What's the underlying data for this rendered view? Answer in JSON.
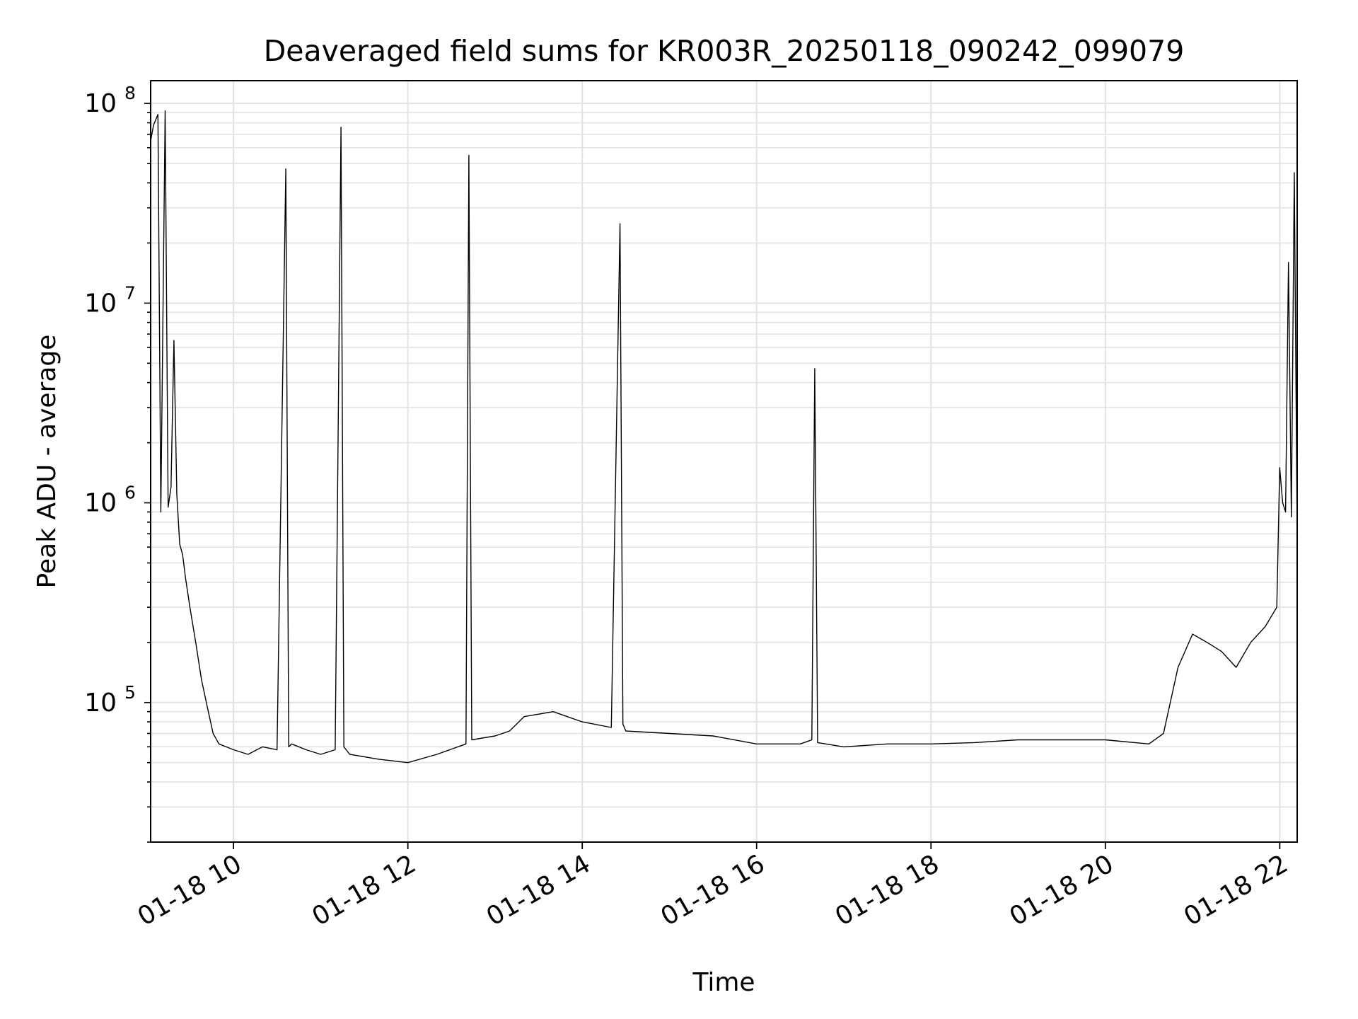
{
  "chart_data": {
    "type": "line",
    "title": "Deaveraged field sums for KR003R_20250118_090242_099079",
    "xlabel": "Time",
    "ylabel": "Peak ADU - average",
    "y_scale": "log",
    "ylim": [
      20000,
      130000000
    ],
    "xlim": [
      "01-18 09:03",
      "01-18 22:12"
    ],
    "grid": true,
    "line_color": "#000000",
    "x_tick_labels": [
      "01-18 10",
      "01-18 12",
      "01-18 14",
      "01-18 16",
      "01-18 18",
      "01-18 20",
      "01-18 22"
    ],
    "x_tick_times": [
      "01-18 10:00",
      "01-18 12:00",
      "01-18 14:00",
      "01-18 16:00",
      "01-18 18:00",
      "01-18 20:00",
      "01-18 22:00"
    ],
    "y_ticks": [
      {
        "value": 100000,
        "base": "10",
        "exp": "5"
      },
      {
        "value": 1000000,
        "base": "10",
        "exp": "6"
      },
      {
        "value": 10000000,
        "base": "10",
        "exp": "7"
      },
      {
        "value": 100000000,
        "base": "10",
        "exp": "8"
      }
    ],
    "series": [
      {
        "x": [
          "01-18 09:03",
          "01-18 09:05",
          "01-18 09:08",
          "01-18 09:10",
          "01-18 09:13",
          "01-18 09:15",
          "01-18 09:17",
          "01-18 09:19",
          "01-18 09:21",
          "01-18 09:23",
          "01-18 09:25",
          "01-18 09:27",
          "01-18 09:30",
          "01-18 09:34",
          "01-18 09:38",
          "01-18 09:42",
          "01-18 09:46",
          "01-18 09:50",
          "01-18 09:55",
          "01-18 10:00",
          "01-18 10:10",
          "01-18 10:20",
          "01-18 10:30",
          "01-18 10:36",
          "01-18 10:38",
          "01-18 10:40",
          "01-18 10:50",
          "01-18 11:00",
          "01-18 11:10",
          "01-18 11:14",
          "01-18 11:16",
          "01-18 11:20",
          "01-18 11:40",
          "01-18 12:00",
          "01-18 12:20",
          "01-18 12:40",
          "01-18 12:42",
          "01-18 12:44",
          "01-18 13:00",
          "01-18 13:10",
          "01-18 13:20",
          "01-18 13:40",
          "01-18 14:00",
          "01-18 14:20",
          "01-18 14:26",
          "01-18 14:28",
          "01-18 14:30",
          "01-18 15:00",
          "01-18 15:30",
          "01-18 16:00",
          "01-18 16:30",
          "01-18 16:38",
          "01-18 16:40",
          "01-18 16:42",
          "01-18 17:00",
          "01-18 17:30",
          "01-18 18:00",
          "01-18 18:30",
          "01-18 19:00",
          "01-18 19:30",
          "01-18 20:00",
          "01-18 20:30",
          "01-18 20:40",
          "01-18 20:50",
          "01-18 21:00",
          "01-18 21:10",
          "01-18 21:20",
          "01-18 21:30",
          "01-18 21:40",
          "01-18 21:50",
          "01-18 21:58",
          "01-18 22:00",
          "01-18 22:02",
          "01-18 22:04",
          "01-18 22:06",
          "01-18 22:08",
          "01-18 22:10",
          "01-18 22:12"
        ],
        "y": [
          65000000,
          78000000,
          88000000,
          900000,
          92000000,
          950000,
          1200000,
          6500000,
          1100000,
          620000,
          550000,
          420000,
          300000,
          200000,
          130000,
          95000,
          70000,
          62000,
          60000,
          58000,
          55000,
          60000,
          58000,
          47000000,
          60000,
          62000,
          58000,
          55000,
          58000,
          76000000,
          60000,
          55000,
          52000,
          50000,
          55000,
          62000,
          55000000,
          65000,
          68000,
          72000,
          85000,
          90000,
          80000,
          75000,
          25000000,
          78000,
          72000,
          70000,
          68000,
          62000,
          62000,
          65000,
          4700000,
          63000,
          60000,
          62000,
          62000,
          63000,
          65000,
          65000,
          65000,
          62000,
          70000,
          150000,
          220000,
          200000,
          180000,
          150000,
          200000,
          240000,
          300000,
          1500000,
          1000000,
          900000,
          16000000,
          850000,
          45000000,
          700000
        ]
      }
    ]
  }
}
